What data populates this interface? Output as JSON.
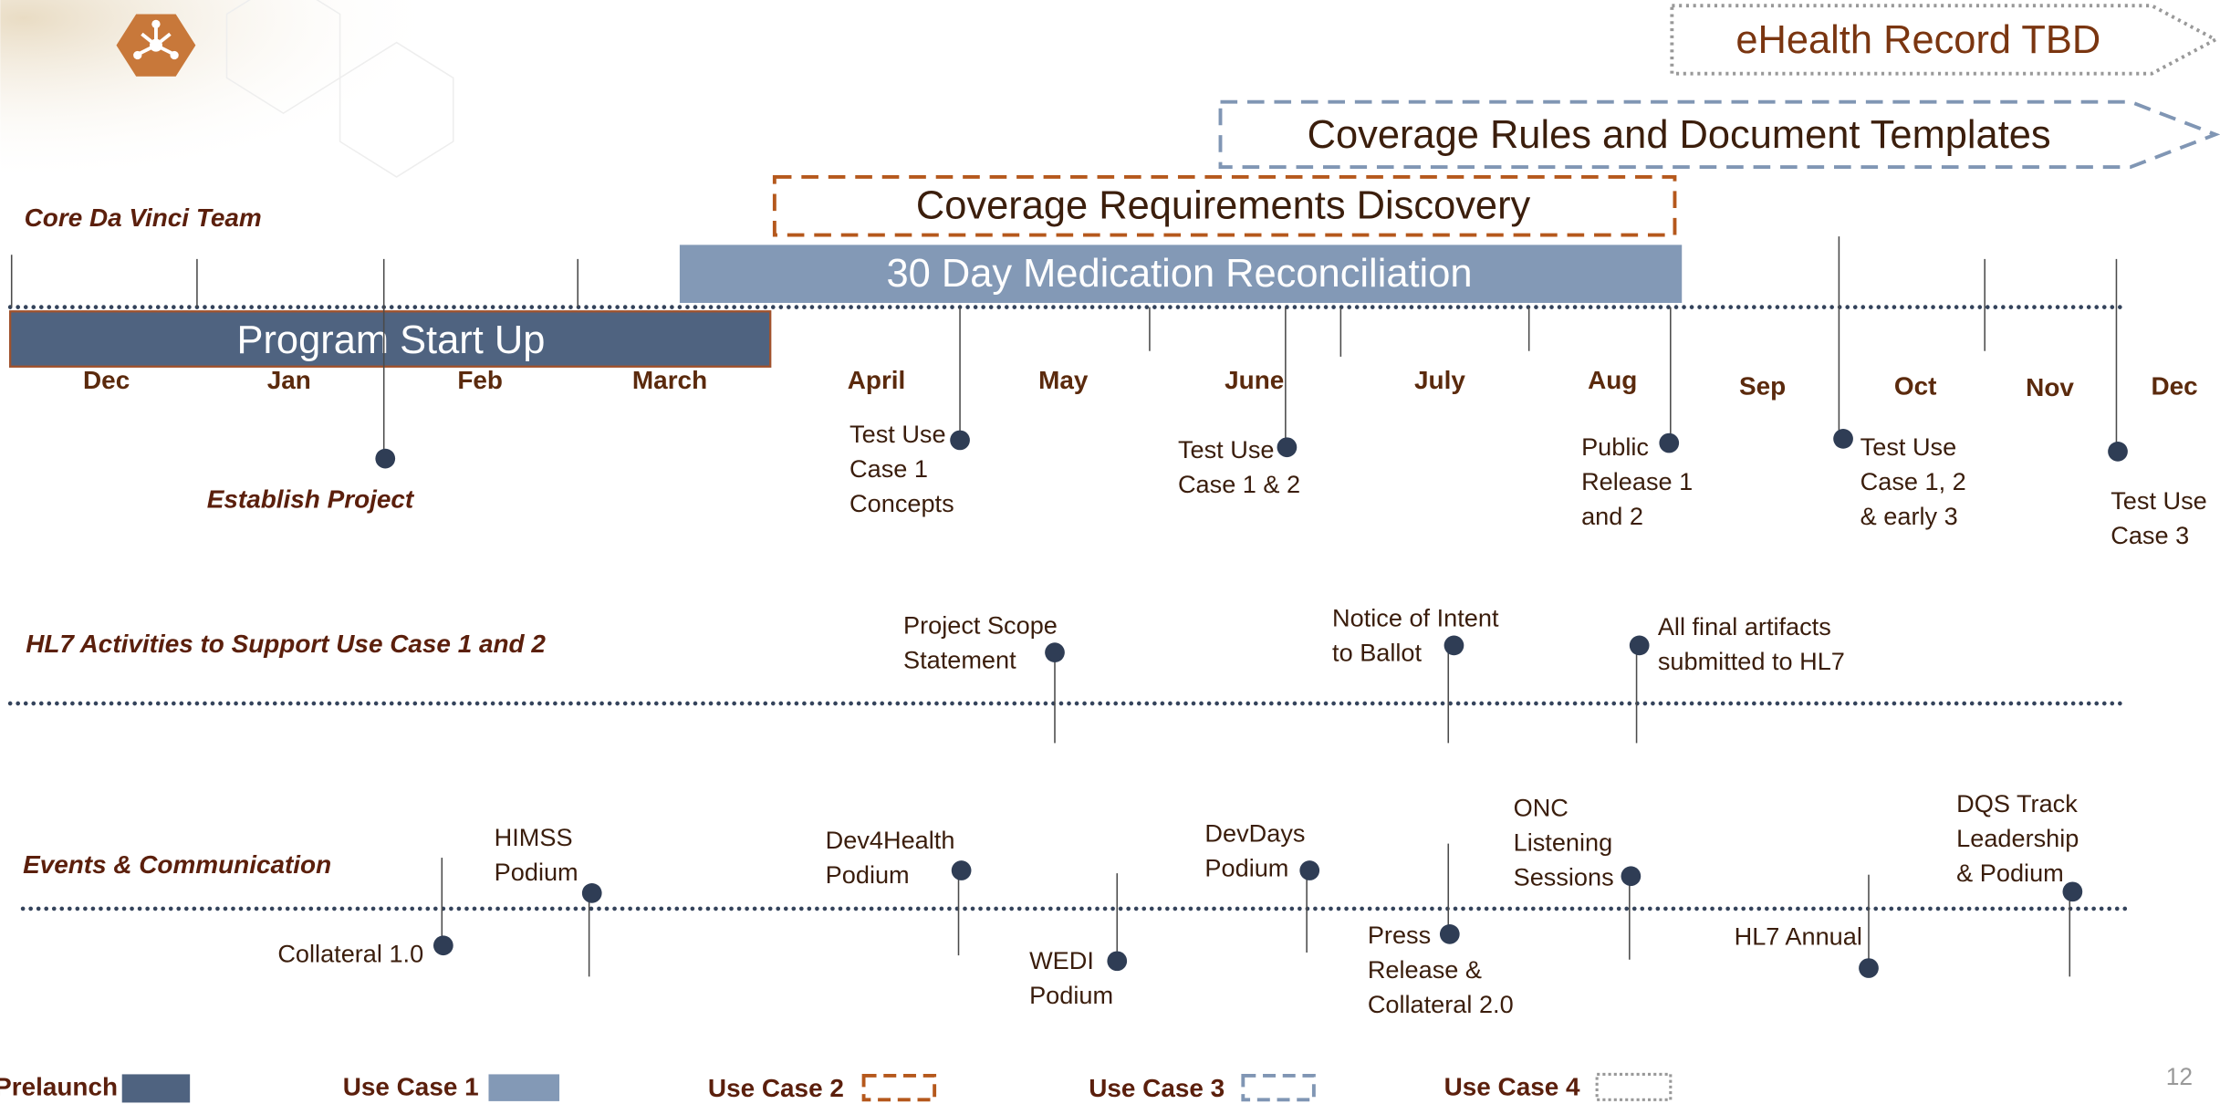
{
  "bars": [
    "eHealth Record TBD",
    "Coverage Rules and Document Templates",
    "Coverage Requirements Discovery",
    "30 Day Medication Reconciliation",
    "Program Start Up"
  ],
  "months": [
    "Dec",
    "Jan",
    "Feb",
    "March",
    "April",
    "May",
    "June",
    "July",
    "Aug",
    "Sep",
    "Oct",
    "Nov",
    "Dec"
  ],
  "rows": [
    {
      "label": "Core Da Vinci Team",
      "milestones": [
        [
          "Establish Project"
        ],
        [
          "Test Use",
          "Case 1",
          "Concepts"
        ],
        [
          "Test Use",
          "Case 1 & 2"
        ],
        [
          "Public",
          "Release 1",
          "and 2"
        ],
        [
          "Test Use",
          "Case 1, 2",
          "& early 3"
        ],
        [
          "Test Use",
          "Case 3"
        ]
      ]
    },
    {
      "label": "HL7 Activities to Support Use Case 1 and 2",
      "milestones": [
        [
          "Project Scope",
          "Statement"
        ],
        [
          "Notice of Intent",
          "to Ballot"
        ],
        [
          "All final artifacts",
          "submitted to HL7"
        ]
      ]
    },
    {
      "label": "Events & Communication",
      "milestones": [
        [
          "Collateral 1.0"
        ],
        [
          "HIMSS",
          "Podium"
        ],
        [
          "Dev4Health",
          "Podium"
        ],
        [
          "WEDI",
          "Podium"
        ],
        [
          "DevDays",
          "Podium"
        ],
        [
          "Press",
          "Release &",
          "Collateral 2.0"
        ],
        [
          "ONC",
          "Listening",
          "Sessions"
        ],
        [
          "HL7 Annual"
        ],
        [
          "DQS Track",
          "Leadership",
          "& Podium"
        ]
      ]
    }
  ],
  "legend": [
    "Prelaunch",
    "Use Case 1",
    "Use Case 2",
    "Use Case 3",
    "Use Case 4"
  ],
  "page_number": "12"
}
